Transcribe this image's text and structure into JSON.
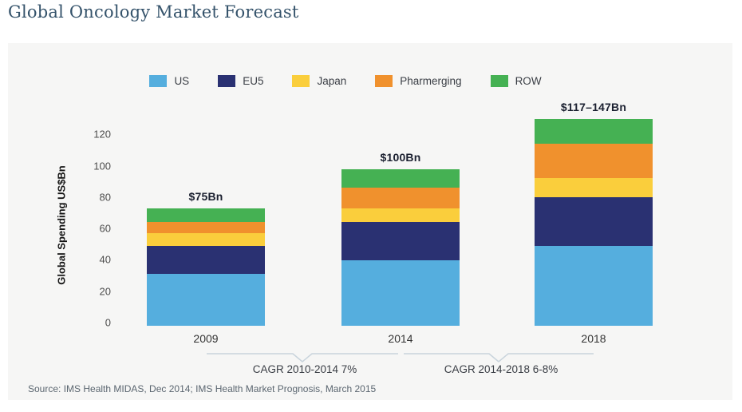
{
  "page": {
    "title": "Global Oncology Market Forecast"
  },
  "chart_data": {
    "type": "bar",
    "stacked": true,
    "title": "Global Oncology Market Forecast",
    "categories": [
      "2009",
      "2014",
      "2018"
    ],
    "series": [
      {
        "name": "US",
        "color": "#55AEDE",
        "values": [
          33,
          42,
          51
        ]
      },
      {
        "name": "EU5",
        "color": "#2A3172",
        "values": [
          18,
          24,
          31
        ]
      },
      {
        "name": "Japan",
        "color": "#FACE3C",
        "values": [
          8,
          9,
          12
        ]
      },
      {
        "name": "Pharmerging",
        "color": "#F0912D",
        "values": [
          7,
          13,
          22
        ]
      },
      {
        "name": "ROW",
        "color": "#45B153",
        "values": [
          9,
          12,
          16
        ]
      }
    ],
    "totals": [
      75,
      100,
      132
    ],
    "total_labels": [
      "$75Bn",
      "$100Bn",
      "$117–147Bn"
    ],
    "xlabel": "",
    "ylabel": "Global Spending US$Bn",
    "ylim": [
      0,
      132
    ],
    "yticks": [
      0,
      20,
      40,
      60,
      80,
      100,
      120
    ],
    "grid": false,
    "legend_position": "top",
    "annotations": [
      {
        "text": "CAGR 2010-2014 7%",
        "span": [
          "2009",
          "2014"
        ]
      },
      {
        "text": "CAGR 2014-2018 6-8%",
        "span": [
          "2014",
          "2018"
        ]
      }
    ],
    "annotation_line_color": "#C9D4DC",
    "panel_background": "#F6F6F5"
  },
  "footer": {
    "source": "Source: IMS Health MIDAS, Dec 2014; IMS Health Market Prognosis, March 2015"
  }
}
